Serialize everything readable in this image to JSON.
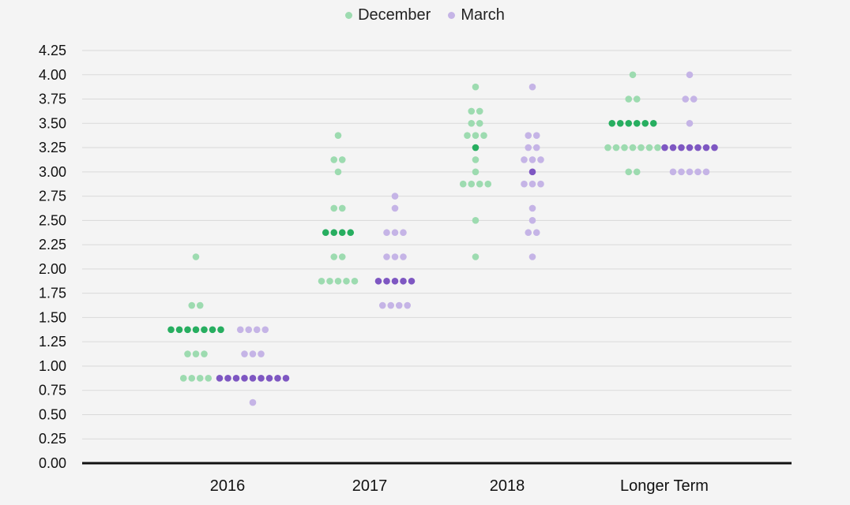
{
  "chart_data": {
    "type": "scatter",
    "title": "",
    "xlabel": "",
    "ylabel": "",
    "categories": [
      "2016",
      "2017",
      "2018",
      "Longer Term"
    ],
    "ylim": [
      0,
      4.25
    ],
    "yticks": [
      "0.00",
      "0.25",
      "0.50",
      "0.75",
      "1.00",
      "1.25",
      "1.50",
      "1.75",
      "2.00",
      "2.25",
      "2.50",
      "2.75",
      "3.00",
      "3.25",
      "3.50",
      "3.75",
      "4.00",
      "4.25"
    ],
    "grid": true,
    "legend_position": "top-center",
    "series": [
      {
        "name": "December",
        "color": "#9ddbb0",
        "median_color": "#27ae60",
        "points": [
          {
            "category": "2016",
            "y": 2.125,
            "count": 1
          },
          {
            "category": "2016",
            "y": 1.625,
            "count": 2
          },
          {
            "category": "2016",
            "y": 1.375,
            "count": 7,
            "median": true
          },
          {
            "category": "2016",
            "y": 1.125,
            "count": 3
          },
          {
            "category": "2016",
            "y": 0.875,
            "count": 4
          },
          {
            "category": "2017",
            "y": 3.375,
            "count": 1
          },
          {
            "category": "2017",
            "y": 3.125,
            "count": 2
          },
          {
            "category": "2017",
            "y": 3.0,
            "count": 1
          },
          {
            "category": "2017",
            "y": 2.625,
            "count": 2
          },
          {
            "category": "2017",
            "y": 2.375,
            "count": 4,
            "median": true
          },
          {
            "category": "2017",
            "y": 2.125,
            "count": 2
          },
          {
            "category": "2017",
            "y": 1.875,
            "count": 5
          },
          {
            "category": "2018",
            "y": 3.875,
            "count": 1
          },
          {
            "category": "2018",
            "y": 3.625,
            "count": 2
          },
          {
            "category": "2018",
            "y": 3.5,
            "count": 2
          },
          {
            "category": "2018",
            "y": 3.375,
            "count": 3
          },
          {
            "category": "2018",
            "y": 3.25,
            "count": 1,
            "median": true
          },
          {
            "category": "2018",
            "y": 3.125,
            "count": 1
          },
          {
            "category": "2018",
            "y": 3.0,
            "count": 1
          },
          {
            "category": "2018",
            "y": 2.875,
            "count": 4
          },
          {
            "category": "2018",
            "y": 2.5,
            "count": 1
          },
          {
            "category": "2018",
            "y": 2.125,
            "count": 1
          },
          {
            "category": "Longer Term",
            "y": 4.0,
            "count": 1
          },
          {
            "category": "Longer Term",
            "y": 3.75,
            "count": 2
          },
          {
            "category": "Longer Term",
            "y": 3.5,
            "count": 6,
            "median": true
          },
          {
            "category": "Longer Term",
            "y": 3.25,
            "count": 7
          },
          {
            "category": "Longer Term",
            "y": 3.0,
            "count": 2
          }
        ]
      },
      {
        "name": "March",
        "color": "#c5b4e6",
        "median_color": "#7e57c2",
        "points": [
          {
            "category": "2016",
            "y": 1.375,
            "count": 4
          },
          {
            "category": "2016",
            "y": 1.125,
            "count": 3
          },
          {
            "category": "2016",
            "y": 0.875,
            "count": 9,
            "median": true
          },
          {
            "category": "2016",
            "y": 0.625,
            "count": 1
          },
          {
            "category": "2017",
            "y": 2.75,
            "count": 1
          },
          {
            "category": "2017",
            "y": 2.625,
            "count": 1
          },
          {
            "category": "2017",
            "y": 2.375,
            "count": 3
          },
          {
            "category": "2017",
            "y": 2.125,
            "count": 3
          },
          {
            "category": "2017",
            "y": 1.875,
            "count": 5,
            "median": true
          },
          {
            "category": "2017",
            "y": 1.625,
            "count": 4
          },
          {
            "category": "2018",
            "y": 3.875,
            "count": 1
          },
          {
            "category": "2018",
            "y": 3.375,
            "count": 2
          },
          {
            "category": "2018",
            "y": 3.25,
            "count": 2
          },
          {
            "category": "2018",
            "y": 3.125,
            "count": 3
          },
          {
            "category": "2018",
            "y": 3.0,
            "count": 1,
            "median": true
          },
          {
            "category": "2018",
            "y": 2.875,
            "count": 3
          },
          {
            "category": "2018",
            "y": 2.625,
            "count": 1
          },
          {
            "category": "2018",
            "y": 2.5,
            "count": 1
          },
          {
            "category": "2018",
            "y": 2.375,
            "count": 2
          },
          {
            "category": "2018",
            "y": 2.125,
            "count": 1
          },
          {
            "category": "Longer Term",
            "y": 4.0,
            "count": 1
          },
          {
            "category": "Longer Term",
            "y": 3.75,
            "count": 2
          },
          {
            "category": "Longer Term",
            "y": 3.5,
            "count": 1
          },
          {
            "category": "Longer Term",
            "y": 3.25,
            "count": 7,
            "median": true
          },
          {
            "category": "Longer Term",
            "y": 3.0,
            "count": 5
          }
        ]
      }
    ]
  },
  "legend": {
    "items": [
      {
        "label": "December",
        "color": "#9ddbb0"
      },
      {
        "label": "March",
        "color": "#c5b4e6"
      }
    ]
  }
}
